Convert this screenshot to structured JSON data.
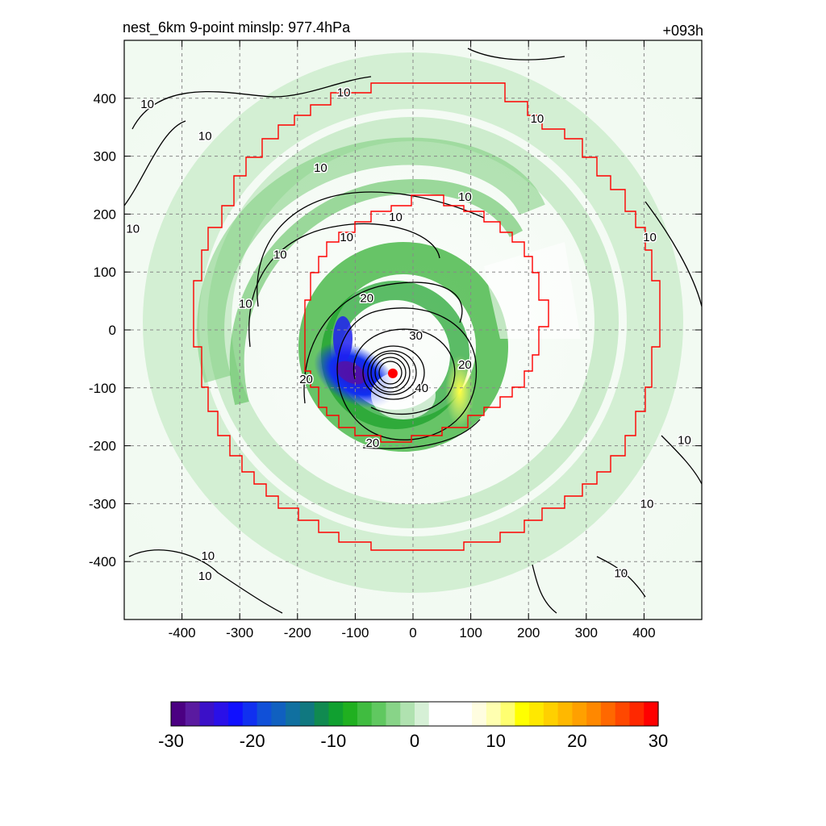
{
  "chart_data": {
    "type": "heatmap",
    "title_left": "nest_6km  9-point minslp: 977.4hPa",
    "title_right": "+093h",
    "xlabel": "",
    "ylabel": "",
    "xlim": [
      -500,
      500
    ],
    "ylim": [
      -500,
      500
    ],
    "x_ticks": [
      -400,
      -300,
      -200,
      -100,
      0,
      100,
      200,
      300,
      400
    ],
    "y_ticks": [
      400,
      300,
      200,
      100,
      0,
      -100,
      -200,
      -300,
      -400
    ],
    "grid": true,
    "colorbar": {
      "min": -30,
      "max": 30,
      "ticks": [
        -30,
        -20,
        -10,
        0,
        10,
        20,
        30
      ],
      "colors": [
        "#4b0082",
        "#5a1aa0",
        "#3b10c8",
        "#2a10e8",
        "#1010ff",
        "#1030f0",
        "#1050d8",
        "#1060c0",
        "#1070a0",
        "#107880",
        "#108a50",
        "#10a030",
        "#20b020",
        "#40bc40",
        "#60c860",
        "#88d488",
        "#b0e2b0",
        "#d6f0d6",
        "#ffffff",
        "#ffffff",
        "#ffffff",
        "#fffde0",
        "#ffffb0",
        "#ffff70",
        "#ffff00",
        "#ffe800",
        "#ffd000",
        "#ffb800",
        "#ffa000",
        "#ff8800",
        "#ff6800",
        "#ff4800",
        "#ff2800",
        "#ff0000"
      ]
    },
    "center_marker": {
      "x": -35,
      "y": -75
    },
    "contour_label_values": [
      "10",
      "20",
      "30",
      "40"
    ],
    "contour_labels": [
      {
        "text": "10",
        "x": -460,
        "y": 390
      },
      {
        "text": "10",
        "x": -360,
        "y": 335
      },
      {
        "text": "10",
        "x": -120,
        "y": 410
      },
      {
        "text": "10",
        "x": -160,
        "y": 280
      },
      {
        "text": "10",
        "x": 90,
        "y": 230
      },
      {
        "text": "10",
        "x": 215,
        "y": 365
      },
      {
        "text": "10",
        "x": -30,
        "y": 195
      },
      {
        "text": "10",
        "x": -115,
        "y": 160
      },
      {
        "text": "10",
        "x": -230,
        "y": 130
      },
      {
        "text": "10",
        "x": -290,
        "y": 45
      },
      {
        "text": "10",
        "x": -485,
        "y": 175
      },
      {
        "text": "10",
        "x": 410,
        "y": 160
      },
      {
        "text": "10",
        "x": 470,
        "y": -190
      },
      {
        "text": "10",
        "x": 405,
        "y": -300
      },
      {
        "text": "10",
        "x": 360,
        "y": -420
      },
      {
        "text": "10",
        "x": -355,
        "y": -390
      },
      {
        "text": "10",
        "x": -360,
        "y": -425
      },
      {
        "text": "20",
        "x": -80,
        "y": 55
      },
      {
        "text": "20",
        "x": -185,
        "y": -85
      },
      {
        "text": "20",
        "x": 90,
        "y": -60
      },
      {
        "text": "20",
        "x": -70,
        "y": -195
      },
      {
        "text": "30",
        "x": 5,
        "y": -10
      },
      {
        "text": "40",
        "x": 15,
        "y": -100
      }
    ]
  }
}
